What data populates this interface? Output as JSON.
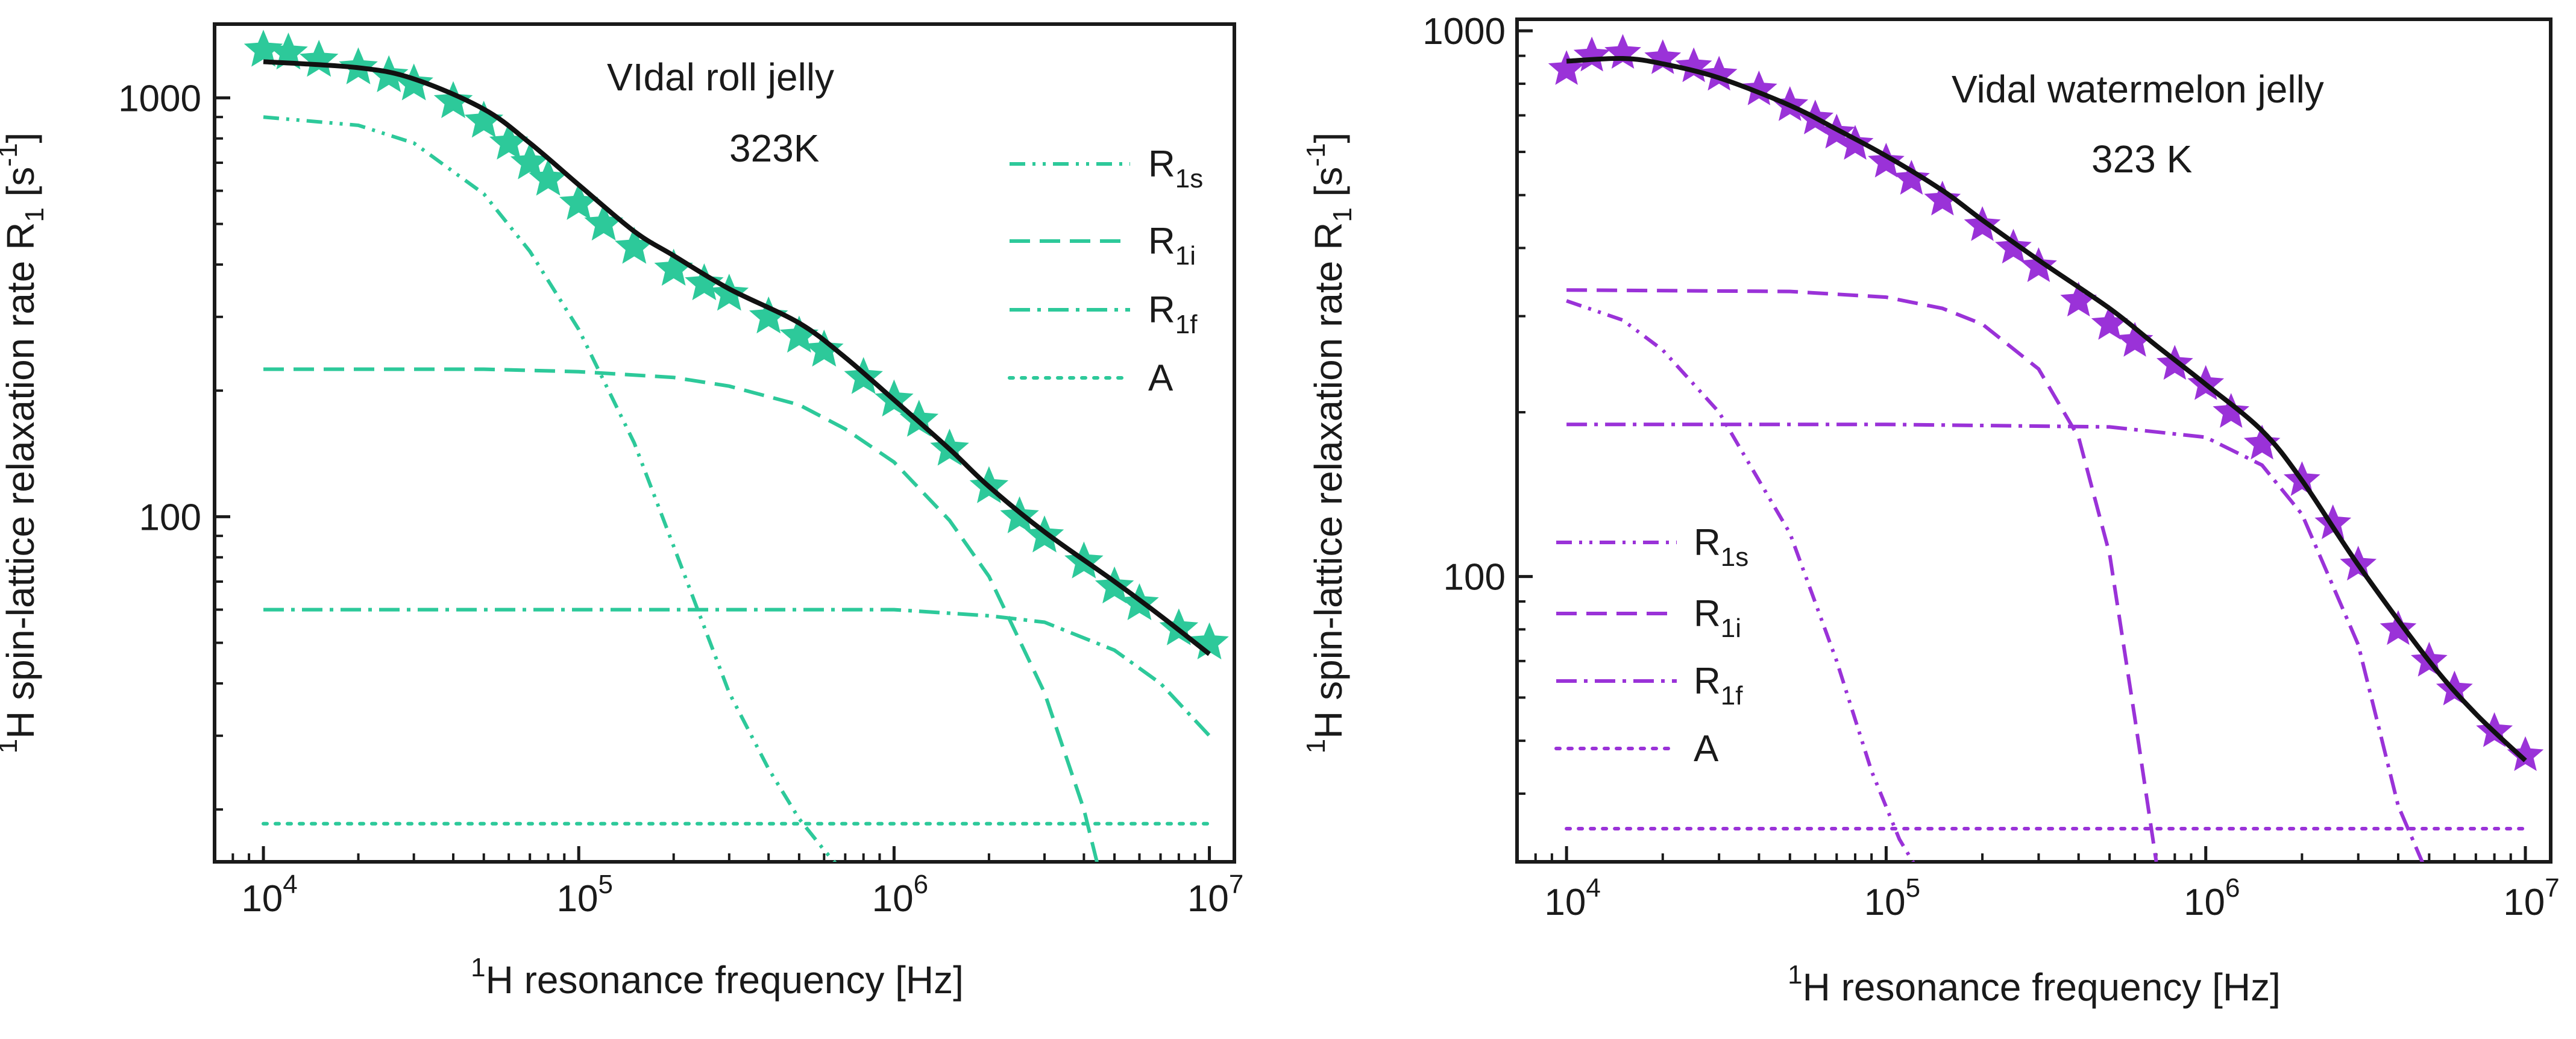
{
  "chart_data": [
    {
      "type": "line",
      "x_scale": "log",
      "y_scale": "log",
      "color": "#2dc99a",
      "annotation": {
        "line1": "VIdal roll jelly",
        "line2": "323K"
      },
      "xlabel": {
        "sup": "1",
        "main": "H resonance frequency [Hz]"
      },
      "ylabel": {
        "sup": "1",
        "pre": "H spin-lattice relaxation rate R",
        "sub": "1",
        "post": " [s",
        "sup2": "-1",
        "end": "]"
      },
      "xlim": [
        7000,
        12000000
      ],
      "ylim": [
        15,
        1500
      ],
      "x_ticks": [
        {
          "base": "10",
          "exp": "4",
          "v": 10000
        },
        {
          "base": "10",
          "exp": "5",
          "v": 100000
        },
        {
          "base": "10",
          "exp": "6",
          "v": 1000000
        },
        {
          "base": "10",
          "exp": "7",
          "v": 10000000
        }
      ],
      "y_ticks": [
        {
          "label": "100",
          "v": 100
        },
        {
          "label": "1000",
          "v": 1000
        }
      ],
      "legend": [
        {
          "name": "R",
          "sub": "1s",
          "style": "dash-dot-dot"
        },
        {
          "name": "R",
          "sub": "1i",
          "style": "dash"
        },
        {
          "name": "R",
          "sub": "1f",
          "style": "dash-dot"
        },
        {
          "name": "A",
          "sub": "",
          "style": "dot"
        }
      ],
      "data_points": {
        "x": [
          10000,
          12000,
          15000,
          20000,
          25000,
          30000,
          40000,
          50000,
          60000,
          70000,
          80000,
          100000,
          120000,
          150000,
          200000,
          250000,
          300000,
          400000,
          500000,
          600000,
          800000,
          1000000,
          1200000,
          1500000,
          2000000,
          2500000,
          3000000,
          4000000,
          5000000,
          6000000,
          8000000,
          10000000
        ],
        "y": [
          1300,
          1280,
          1230,
          1180,
          1130,
          1080,
          980,
          880,
          780,
          700,
          640,
          560,
          500,
          440,
          390,
          360,
          340,
          300,
          270,
          250,
          215,
          190,
          170,
          145,
          118,
          100,
          90,
          78,
          68,
          62,
          54,
          50
        ]
      },
      "fit": {
        "x": [
          10000,
          20000,
          30000,
          50000,
          70000,
          100000,
          150000,
          200000,
          300000,
          500000,
          700000,
          1000000,
          1500000,
          2000000,
          3000000,
          5000000,
          7000000,
          10000000
        ],
        "y": [
          1220,
          1180,
          1110,
          940,
          780,
          620,
          480,
          420,
          350,
          290,
          240,
          190,
          145,
          118,
          92,
          70,
          58,
          47
        ]
      },
      "components": {
        "R1s": {
          "x": [
            10000,
            20000,
            30000,
            50000,
            70000,
            100000,
            150000,
            200000,
            300000,
            400000,
            500000,
            600000,
            700000
          ],
          "y": [
            900,
            860,
            780,
            590,
            430,
            280,
            150,
            85,
            38,
            25,
            19,
            16,
            14
          ]
        },
        "R1i": {
          "x": [
            10000,
            50000,
            100000,
            200000,
            300000,
            500000,
            700000,
            1000000,
            1500000,
            2000000,
            3000000,
            4000000,
            4500000
          ],
          "y": [
            225,
            225,
            222,
            215,
            205,
            185,
            162,
            135,
            98,
            72,
            38,
            20,
            14
          ]
        },
        "R1f": {
          "x": [
            10000,
            100000,
            500000,
            1000000,
            2000000,
            3000000,
            5000000,
            7000000,
            10000000
          ],
          "y": [
            60,
            60,
            60,
            60,
            58,
            56,
            48,
            40,
            30
          ]
        },
        "A": {
          "x": [
            10000,
            10000000
          ],
          "y": [
            18.5,
            18.5
          ]
        }
      }
    },
    {
      "type": "line",
      "x_scale": "log",
      "y_scale": "log",
      "color": "#9a32d8",
      "annotation": {
        "line1": "Vidal watermelon jelly",
        "line2": "323 K"
      },
      "xlabel": {
        "sup": "1",
        "main": "H resonance frequency [Hz]"
      },
      "ylabel": {
        "sup": "1",
        "pre": "H spin-lattice relaxation rate R",
        "sub": "1",
        "post": " [s",
        "sup2": "-1",
        "end": "]"
      },
      "xlim": [
        7000,
        12000000
      ],
      "ylim": [
        30,
        1050
      ],
      "x_ticks": [
        {
          "base": "10",
          "exp": "4",
          "v": 10000
        },
        {
          "base": "10",
          "exp": "5",
          "v": 100000
        },
        {
          "base": "10",
          "exp": "6",
          "v": 1000000
        },
        {
          "base": "10",
          "exp": "7",
          "v": 10000000
        }
      ],
      "y_ticks": [
        {
          "label": "100",
          "v": 100
        },
        {
          "label": "1000",
          "v": 1000
        }
      ],
      "legend": [
        {
          "name": "R",
          "sub": "1s",
          "style": "dash-dot-dot"
        },
        {
          "name": "R",
          "sub": "1i",
          "style": "dash"
        },
        {
          "name": "R",
          "sub": "1f",
          "style": "dash-dot"
        },
        {
          "name": "A",
          "sub": "",
          "style": "dot"
        }
      ],
      "data_points": {
        "x": [
          10000,
          12000,
          15000,
          20000,
          25000,
          30000,
          40000,
          50000,
          60000,
          70000,
          80000,
          100000,
          120000,
          150000,
          200000,
          250000,
          300000,
          400000,
          500000,
          600000,
          800000,
          1000000,
          1200000,
          1500000,
          2000000,
          2500000,
          3000000,
          4000000,
          5000000,
          6000000,
          8000000,
          10000000
        ],
        "y": [
          850,
          900,
          910,
          890,
          860,
          830,
          780,
          730,
          690,
          650,
          620,
          575,
          535,
          490,
          440,
          400,
          370,
          320,
          290,
          270,
          245,
          225,
          200,
          175,
          150,
          125,
          105,
          80,
          70,
          62,
          52,
          47
        ]
      },
      "fit": {
        "x": [
          10000,
          15000,
          20000,
          30000,
          50000,
          70000,
          100000,
          150000,
          200000,
          300000,
          500000,
          700000,
          1000000,
          1500000,
          2000000,
          3000000,
          5000000,
          7000000,
          10000000
        ],
        "y": [
          880,
          890,
          870,
          820,
          730,
          660,
          590,
          510,
          450,
          380,
          310,
          265,
          225,
          185,
          150,
          105,
          70,
          56,
          46
        ]
      },
      "components": {
        "R1s": {
          "x": [
            10000,
            15000,
            20000,
            30000,
            50000,
            70000,
            90000,
            110000,
            130000
          ],
          "y": [
            320,
            295,
            260,
            200,
            120,
            70,
            44,
            33,
            28
          ]
        },
        "R1i": {
          "x": [
            10000,
            50000,
            100000,
            150000,
            200000,
            300000,
            400000,
            500000,
            600000,
            700000
          ],
          "y": [
            335,
            333,
            325,
            310,
            290,
            240,
            180,
            110,
            55,
            30
          ]
        },
        "R1f": {
          "x": [
            10000,
            100000,
            500000,
            1000000,
            1500000,
            2000000,
            3000000,
            4000000,
            5000000
          ],
          "y": [
            190,
            190,
            188,
            180,
            160,
            130,
            75,
            38,
            28
          ]
        },
        "A": {
          "x": [
            10000,
            10000000
          ],
          "y": [
            34.5,
            34.5
          ]
        }
      }
    }
  ]
}
